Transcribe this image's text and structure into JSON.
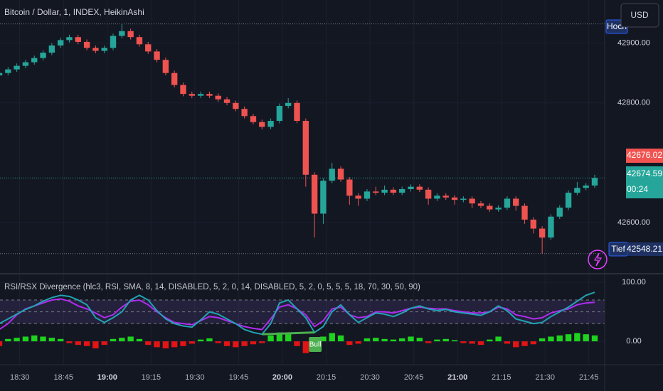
{
  "chart_data": [
    {
      "type": "candlestick",
      "title": "Bitcoin / Dollar, 1, INDEX, HeikinAshi",
      "currency": "USD",
      "x": [
        "18:23",
        "18:26",
        "18:29",
        "18:32",
        "18:35",
        "18:38",
        "18:41",
        "18:44",
        "18:47",
        "18:50",
        "18:53",
        "18:56",
        "18:59",
        "19:02",
        "19:05",
        "19:08",
        "19:11",
        "19:14",
        "19:17",
        "19:20",
        "19:23",
        "19:26",
        "19:29",
        "19:32",
        "19:35",
        "19:38",
        "19:41",
        "19:44",
        "19:47",
        "19:50",
        "19:53",
        "19:56",
        "19:59",
        "20:02",
        "20:05",
        "20:08",
        "20:11",
        "20:14",
        "20:17",
        "20:20",
        "20:23",
        "20:26",
        "20:29",
        "20:32",
        "20:35",
        "20:38",
        "20:41",
        "20:44",
        "20:47",
        "20:50",
        "20:53",
        "20:56",
        "20:59",
        "21:02",
        "21:05",
        "21:08",
        "21:11",
        "21:14",
        "21:17",
        "21:20",
        "21:23",
        "21:26",
        "21:29",
        "21:32",
        "21:35",
        "21:38",
        "21:41",
        "21:44",
        "21:47"
      ],
      "open": [
        42846,
        42850,
        42856,
        42862,
        42868,
        42875,
        42884,
        42896,
        42905,
        42910,
        42902,
        42892,
        42887,
        42892,
        42912,
        42920,
        42910,
        42898,
        42886,
        42872,
        42850,
        42830,
        42815,
        42812,
        42815,
        42812,
        42806,
        42800,
        42790,
        42778,
        42768,
        42760,
        42770,
        42795,
        42800,
        42770,
        42680,
        42615,
        42670,
        42690,
        42672,
        42645,
        42640,
        42652,
        42650,
        42655,
        42650,
        42656,
        42660,
        42655,
        42640,
        42645,
        42642,
        42638,
        42640,
        42632,
        42628,
        42622,
        42625,
        42640,
        42628,
        42605,
        42590,
        42575,
        42610,
        42625,
        42650,
        42658,
        42662
      ],
      "high": [
        42854,
        42860,
        42866,
        42872,
        42879,
        42888,
        42900,
        42909,
        42914,
        42914,
        42906,
        42896,
        42896,
        42916,
        42932,
        42924,
        42914,
        42902,
        42890,
        42876,
        42854,
        42834,
        42819,
        42819,
        42819,
        42816,
        42810,
        42804,
        42794,
        42782,
        42772,
        42774,
        42799,
        42808,
        42804,
        42774,
        42684,
        42674,
        42700,
        42694,
        42676,
        42649,
        42656,
        42660,
        42662,
        42659,
        42660,
        42664,
        42664,
        42659,
        42649,
        42649,
        42646,
        42644,
        42644,
        42636,
        42632,
        42629,
        42644,
        42644,
        42632,
        42609,
        42594,
        42614,
        42629,
        42654,
        42668,
        42666,
        42680
      ],
      "low": [
        42842,
        42846,
        42852,
        42858,
        42864,
        42871,
        42880,
        42892,
        42901,
        42898,
        42888,
        42883,
        42883,
        42888,
        42908,
        42906,
        42894,
        42882,
        42868,
        42846,
        42826,
        42811,
        42808,
        42808,
        42808,
        42802,
        42796,
        42786,
        42774,
        42764,
        42756,
        42756,
        42766,
        42791,
        42766,
        42660,
        42575,
        42598,
        42666,
        42668,
        42630,
        42628,
        42636,
        42646,
        42646,
        42646,
        42646,
        42652,
        42651,
        42630,
        42636,
        42638,
        42630,
        42634,
        42624,
        42624,
        42618,
        42618,
        42621,
        42620,
        42598,
        42582,
        42548.21,
        42571,
        42606,
        42621,
        42646,
        42654,
        42658
      ],
      "close": [
        42850,
        42856,
        42862,
        42868,
        42875,
        42884,
        42896,
        42905,
        42910,
        42902,
        42892,
        42887,
        42892,
        42912,
        42920,
        42910,
        42898,
        42886,
        42872,
        42850,
        42830,
        42815,
        42812,
        42815,
        42812,
        42806,
        42800,
        42790,
        42778,
        42768,
        42760,
        42770,
        42795,
        42800,
        42770,
        42680,
        42615,
        42670,
        42690,
        42672,
        42645,
        42640,
        42652,
        42650,
        42655,
        42650,
        42656,
        42660,
        42655,
        42640,
        42645,
        42642,
        42638,
        42640,
        42632,
        42628,
        42622,
        42625,
        42640,
        42628,
        42605,
        42590,
        42575,
        42610,
        42625,
        42650,
        42658,
        42662,
        42674.59
      ],
      "up_color": "#26a69a",
      "down_color": "#ef5350",
      "ylim": [
        42517,
        42972
      ],
      "yticks": [
        {
          "value": 42600,
          "label": "42600.00"
        },
        {
          "value": 42800,
          "label": "42800.00"
        },
        {
          "value": 42900,
          "label": "42900.00"
        }
      ],
      "xticks": [
        "18:30",
        "18:45",
        "19:00",
        "19:15",
        "19:30",
        "19:45",
        "20:00",
        "20:15",
        "20:30",
        "20:45",
        "21:00",
        "21:15",
        "21:30",
        "21:45"
      ],
      "grid": true,
      "high_label": "Hoch",
      "low_label": "Tief",
      "marker_price": {
        "value": 42676.02,
        "label": "42676.02"
      },
      "countdown": "00:24"
    },
    {
      "type": "line",
      "title": "RSI/RSX Divergence (hlc3, RSI, SMA, 8, 14, DISABLED, 5, 2, 0, 14, DISABLED, 5, 2, 0, 5, 5, 5, 18, 70, 30, 50, 90)",
      "series": [
        {
          "color": "#b02cf0",
          "values": [
            20,
            30,
            45,
            55,
            60,
            65,
            70,
            72,
            68,
            60,
            55,
            48,
            40,
            45,
            58,
            68,
            70,
            62,
            50,
            40,
            32,
            30,
            28,
            35,
            42,
            40,
            35,
            30,
            25,
            22,
            20,
            38,
            58,
            62,
            55,
            45,
            25,
            35,
            55,
            58,
            45,
            40,
            42,
            50,
            50,
            48,
            52,
            56,
            58,
            56,
            55,
            55,
            52,
            50,
            48,
            48,
            50,
            58,
            55,
            45,
            42,
            38,
            40,
            48,
            52,
            55,
            62,
            65,
            66
          ]
        },
        {
          "color": "#21a3b3",
          "values": [
            30,
            38,
            46,
            54,
            60,
            68,
            74,
            78,
            76,
            70,
            62,
            40,
            32,
            40,
            50,
            70,
            78,
            70,
            52,
            38,
            30,
            26,
            24,
            36,
            50,
            46,
            38,
            30,
            20,
            15,
            12,
            30,
            65,
            70,
            55,
            40,
            15,
            25,
            50,
            62,
            45,
            32,
            40,
            48,
            46,
            42,
            48,
            56,
            60,
            55,
            52,
            54,
            50,
            48,
            46,
            44,
            50,
            60,
            52,
            38,
            34,
            30,
            32,
            42,
            50,
            58,
            68,
            78,
            83
          ]
        },
        {
          "type": "bar",
          "up_color": "#1ed31e",
          "down_color": "#e31414",
          "values": [
            -8,
            4,
            6,
            8,
            10,
            8,
            6,
            4,
            -3,
            -6,
            -8,
            -12,
            -6,
            4,
            6,
            8,
            4,
            -6,
            -10,
            -12,
            -10,
            -8,
            -4,
            3,
            5,
            -3,
            -8,
            -10,
            -8,
            -5,
            -3,
            10,
            15,
            12,
            -8,
            -20,
            -15,
            8,
            14,
            10,
            -6,
            -4,
            5,
            6,
            4,
            3,
            5,
            8,
            6,
            -3,
            3,
            4,
            2,
            -3,
            -4,
            -6,
            3,
            8,
            -4,
            -10,
            -8,
            -5,
            5,
            8,
            10,
            12,
            14,
            12,
            10
          ]
        }
      ],
      "ylim": [
        -36,
        111
      ],
      "yticks": [
        {
          "value": 100,
          "label": "100.00"
        },
        {
          "value": 0,
          "label": "0.00"
        }
      ],
      "levels": [
        70,
        50,
        30
      ],
      "annotation": "Bull"
    }
  ]
}
